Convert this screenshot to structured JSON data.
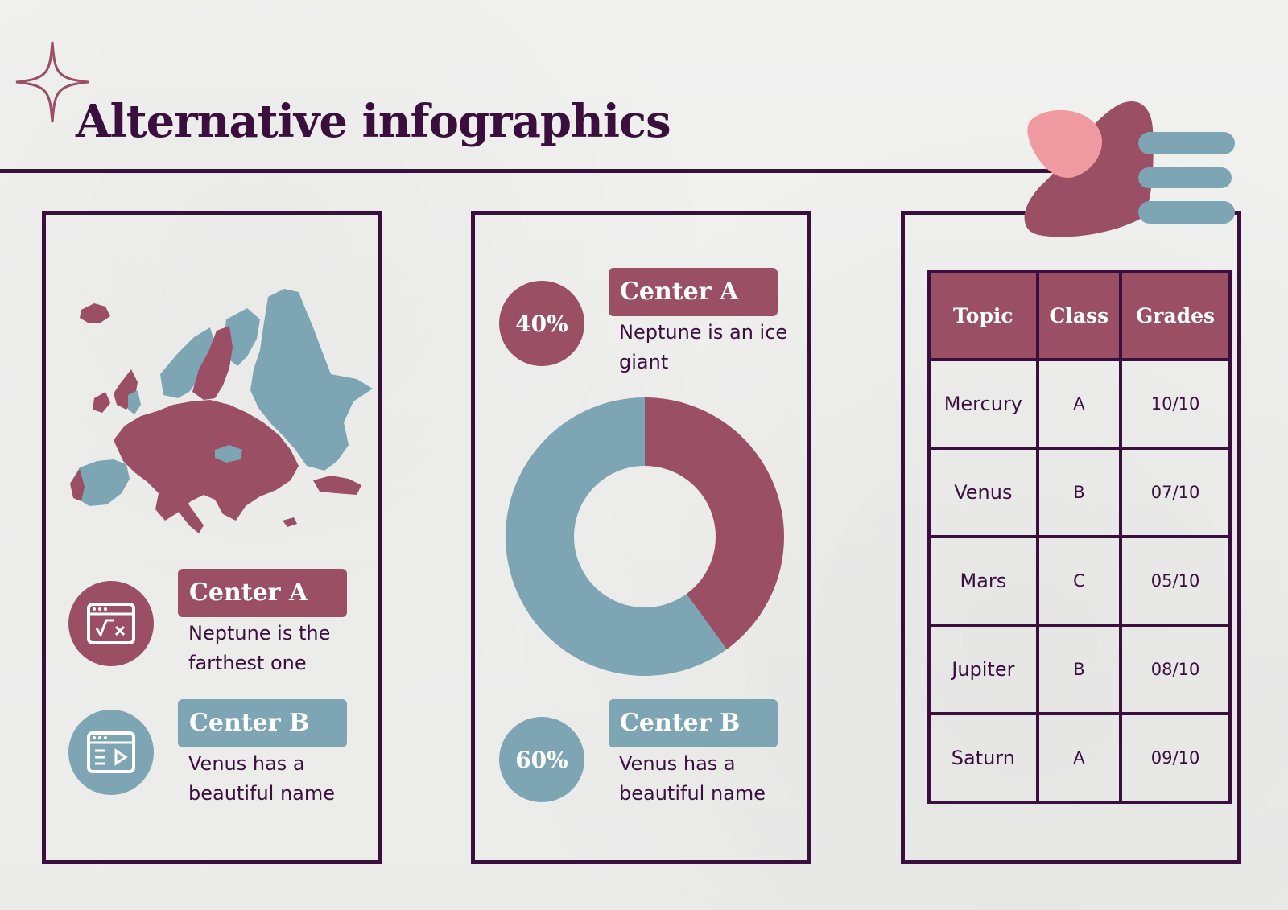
{
  "title": "Alternative infographics",
  "colors": {
    "dark": "#3b0f3d",
    "maroon": "#9a4f64",
    "teal": "#7ea5b3",
    "pink": "#ef9aa0"
  },
  "left_panel": {
    "items": [
      {
        "label": "Center A",
        "text": "Neptune is the farthest one",
        "icon": "calculator-window-icon",
        "color": "maroon"
      },
      {
        "label": "Center B",
        "text": "Venus has a beautiful name",
        "icon": "list-play-window-icon",
        "color": "teal"
      }
    ]
  },
  "middle_panel": {
    "items": [
      {
        "percent": "40%",
        "label": "Center A",
        "text": "Neptune is an ice giant"
      },
      {
        "percent": "60%",
        "label": "Center B",
        "text": "Venus has a beautiful name"
      }
    ]
  },
  "chart_data": {
    "type": "pie",
    "categories": [
      "Center A",
      "Center B"
    ],
    "values": [
      40,
      60
    ],
    "colors": [
      "#9a4f64",
      "#7ea5b3"
    ],
    "donut": true
  },
  "table": {
    "headers": [
      "Topic",
      "Class",
      "Grades"
    ],
    "rows": [
      [
        "Mercury",
        "A",
        "10/10"
      ],
      [
        "Venus",
        "B",
        "07/10"
      ],
      [
        "Mars",
        "C",
        "05/10"
      ],
      [
        "Jupiter",
        "B",
        "08/10"
      ],
      [
        "Saturn",
        "A",
        "09/10"
      ]
    ]
  }
}
